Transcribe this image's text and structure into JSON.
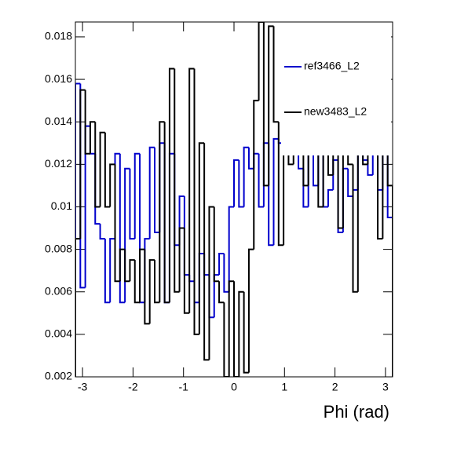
{
  "chart_data": {
    "type": "histogram",
    "xlabel": "Phi (rad)",
    "bins": [
      -3.1416,
      -3.0434,
      -2.9452,
      -2.8471,
      -2.7489,
      -2.6507,
      -2.5525,
      -2.4544,
      -2.3562,
      -2.258,
      -2.1598,
      -2.0617,
      -1.9635,
      -1.8653,
      -1.7671,
      -1.669,
      -1.5708,
      -1.4726,
      -1.3744,
      -1.2763,
      -1.1781,
      -1.0799,
      -0.9817,
      -0.8836,
      -0.7854,
      -0.6872,
      -0.589,
      -0.4909,
      -0.3927,
      -0.2945,
      -0.1963,
      -0.0982,
      0,
      0.0982,
      0.1963,
      0.2945,
      0.3927,
      0.4909,
      0.589,
      0.6872,
      0.7854,
      0.8836,
      0.9817,
      1.0799,
      1.1781,
      1.2763,
      1.3744,
      1.4726,
      1.5708,
      1.669,
      1.7671,
      1.8653,
      1.9635,
      2.0617,
      2.1598,
      2.258,
      2.3562,
      2.4544,
      2.5525,
      2.6507,
      2.7489,
      2.8471,
      2.9452,
      3.0434,
      3.1416
    ],
    "series": [
      {
        "name": "ref3466_L2",
        "color": "#0000cc",
        "values": [
          0.0158,
          0.0062,
          0.0138,
          0.0125,
          0.0092,
          0.0085,
          0.0055,
          0.0085,
          0.0125,
          0.0055,
          0.0118,
          0.0085,
          0.0125,
          0.0055,
          0.0085,
          0.0128,
          0.0088,
          0.013,
          0.0055,
          0.0125,
          0.0082,
          0.0105,
          0.0068,
          0.0065,
          0.0055,
          0.0078,
          0.0068,
          0.0048,
          0.0068,
          0.0078,
          0.006,
          0.01,
          0.0122,
          0.01,
          0.0128,
          0.0118,
          0.0125,
          0.01,
          0.013,
          0.0082,
          0.0132,
          0.013,
          0.0178,
          0.0125,
          0.0132,
          0.0118,
          0.01,
          0.0125,
          0.011,
          0.0125,
          0.01,
          0.0108,
          0.0122,
          0.0088,
          0.0118,
          0.0105,
          0.0108,
          0.013,
          0.0122,
          0.0115,
          0.0132,
          0.0108,
          0.0132,
          0.0095
        ]
      },
      {
        "name": "new3483_L2",
        "color": "#000000",
        "values": [
          0.0085,
          0.0155,
          0.0125,
          0.014,
          0.01,
          0.0135,
          0.01,
          0.012,
          0.0065,
          0.008,
          0.0065,
          0.0075,
          0.0055,
          0.008,
          0.0045,
          0.0075,
          0.0055,
          0.014,
          0.0055,
          0.0165,
          0.006,
          0.009,
          0.005,
          0.0165,
          0.004,
          0.013,
          0.0028,
          0.01,
          0.0065,
          0.0055,
          0.002,
          0.0065,
          0.002,
          0.006,
          0.0022,
          0.008,
          0.015,
          0.0187,
          0.011,
          0.0185,
          0.014,
          0.0082,
          0.016,
          0.012,
          0.0135,
          0.0165,
          0.011,
          0.0135,
          0.015,
          0.01,
          0.0135,
          0.0115,
          0.0165,
          0.009,
          0.015,
          0.012,
          0.006,
          0.0165,
          0.012,
          0.014,
          0.017,
          0.0085,
          0.014,
          0.011
        ]
      }
    ],
    "xlim": [
      -3.1416,
      3.1416
    ],
    "ylim": [
      0.002,
      0.0187
    ],
    "xticks": [
      -3,
      -2,
      -1,
      0,
      1,
      2,
      3
    ],
    "yticks": [
      0.002,
      0.004,
      0.006,
      0.008,
      0.01,
      0.012,
      0.014,
      0.016,
      0.018
    ],
    "legend": "top-right"
  }
}
